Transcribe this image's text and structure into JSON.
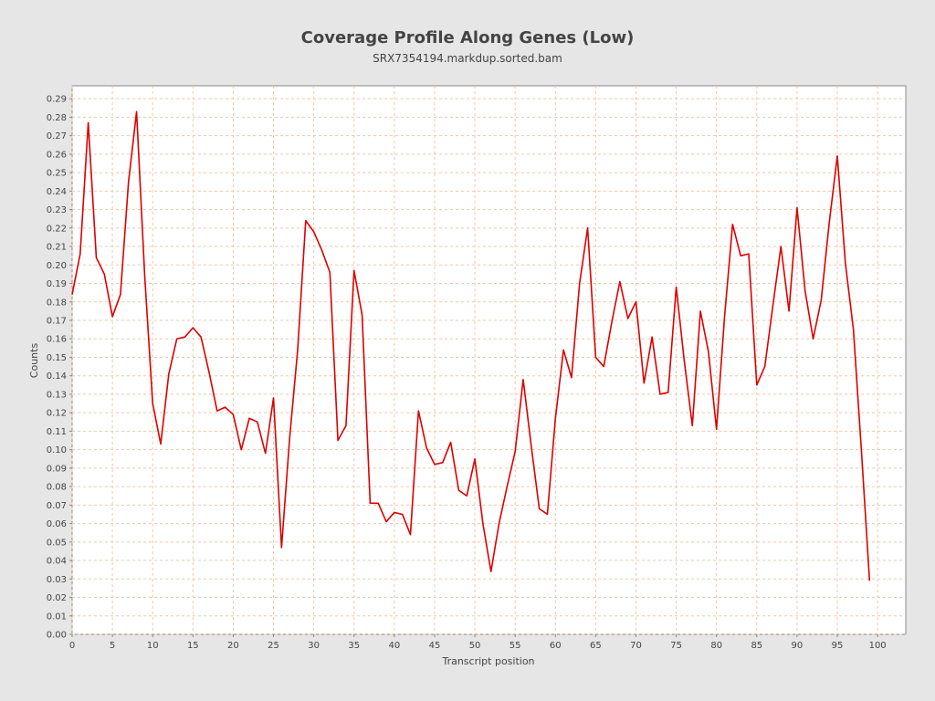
{
  "chart_data": {
    "type": "line",
    "title": "Coverage Profile Along Genes (Low)",
    "subtitle": "SRX7354194.markdup.sorted.bam",
    "xlabel": "Transcript position",
    "ylabel": "Counts",
    "xlim": [
      0,
      103.5
    ],
    "ylim": [
      0,
      0.297
    ],
    "xticks": [
      0,
      5,
      10,
      15,
      20,
      25,
      30,
      35,
      40,
      45,
      50,
      55,
      60,
      65,
      70,
      75,
      80,
      85,
      90,
      95,
      100
    ],
    "yticks": [
      0.0,
      0.01,
      0.02,
      0.03,
      0.04,
      0.05,
      0.06,
      0.07,
      0.08,
      0.09,
      0.1,
      0.11,
      0.12,
      0.13,
      0.14,
      0.15,
      0.16,
      0.17,
      0.18,
      0.19,
      0.2,
      0.21,
      0.22,
      0.23,
      0.24,
      0.25,
      0.26,
      0.27,
      0.28,
      0.29
    ],
    "grid": true,
    "line_color": "#dd0000",
    "grid_color": "#f2c8a8",
    "series": [
      {
        "x": [
          0,
          1,
          2,
          3,
          4,
          5,
          6,
          7,
          8,
          9,
          10,
          11,
          12,
          13,
          14,
          15,
          16,
          17,
          18,
          19,
          20,
          21,
          22,
          23,
          24,
          25,
          26,
          27,
          28,
          29,
          30,
          31,
          32,
          33,
          34,
          35,
          36,
          37,
          38,
          39,
          40,
          41,
          42,
          43,
          44,
          45,
          46,
          47,
          48,
          49,
          50,
          51,
          52,
          53,
          54,
          55,
          56,
          57,
          58,
          59,
          60,
          61,
          62,
          63,
          64,
          65,
          66,
          67,
          68,
          69,
          70,
          71,
          72,
          73,
          74,
          75,
          76,
          77,
          78,
          79,
          80,
          81,
          82,
          83,
          84,
          85,
          86,
          87,
          88,
          89,
          90,
          91,
          92,
          93,
          94,
          95,
          96,
          97,
          98,
          99
        ],
        "values": [
          0.184,
          0.206,
          0.277,
          0.204,
          0.195,
          0.172,
          0.184,
          0.245,
          0.283,
          0.195,
          0.125,
          0.103,
          0.141,
          0.16,
          0.161,
          0.166,
          0.161,
          0.142,
          0.121,
          0.123,
          0.119,
          0.1,
          0.117,
          0.115,
          0.098,
          0.128,
          0.047,
          0.106,
          0.154,
          0.224,
          0.218,
          0.208,
          0.196,
          0.105,
          0.113,
          0.197,
          0.173,
          0.071,
          0.071,
          0.061,
          0.066,
          0.065,
          0.054,
          0.121,
          0.101,
          0.092,
          0.093,
          0.104,
          0.078,
          0.075,
          0.095,
          0.06,
          0.034,
          0.06,
          0.08,
          0.099,
          0.138,
          0.102,
          0.068,
          0.065,
          0.117,
          0.154,
          0.139,
          0.19,
          0.22,
          0.15,
          0.145,
          0.169,
          0.191,
          0.171,
          0.18,
          0.136,
          0.161,
          0.13,
          0.131,
          0.188,
          0.148,
          0.113,
          0.175,
          0.153,
          0.111,
          0.172,
          0.222,
          0.205,
          0.206,
          0.135,
          0.145,
          0.178,
          0.21,
          0.175,
          0.231,
          0.186,
          0.16,
          0.181,
          0.223,
          0.259,
          0.201,
          0.165,
          0.099,
          0.029
        ]
      }
    ]
  }
}
